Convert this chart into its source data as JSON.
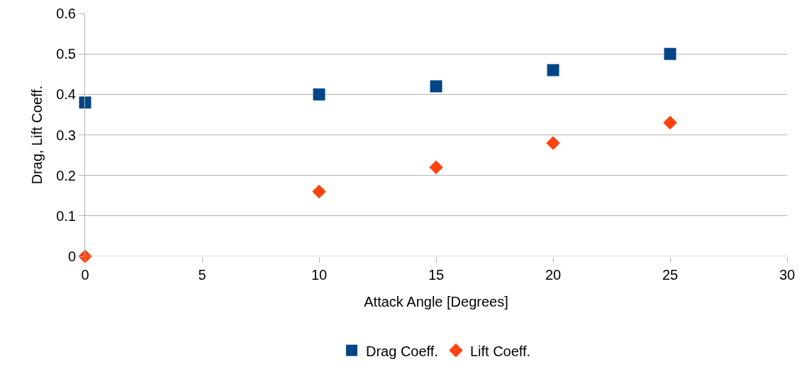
{
  "chart_data": {
    "type": "scatter",
    "xlabel": "Attack Angle [Degrees]",
    "ylabel": "Drag, Lift Coeff.",
    "x": [
      0,
      10,
      15,
      20,
      25
    ],
    "series": [
      {
        "name": "Drag Coeff.",
        "color": "#004586",
        "marker": "square",
        "values": [
          0.38,
          0.4,
          0.42,
          0.46,
          0.5
        ]
      },
      {
        "name": "Lift Coeff.",
        "color": "#ff420e",
        "marker": "diamond",
        "values": [
          0,
          0.16,
          0.22,
          0.28,
          0.33
        ]
      }
    ],
    "xlim": [
      0,
      30
    ],
    "xticks": [
      0,
      5,
      10,
      15,
      20,
      25,
      30
    ],
    "ylim": [
      0,
      0.6
    ],
    "yticks": [
      0,
      0.1,
      0.2,
      0.3,
      0.4,
      0.5,
      0.6
    ],
    "grid": "y",
    "legend": "bottom"
  }
}
